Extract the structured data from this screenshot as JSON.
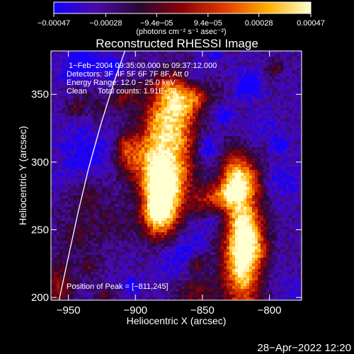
{
  "chart_data": {
    "type": "heatmap",
    "title": "Reconstructed RHESSI Image",
    "xlabel": "Heliocentric X (arcsec)",
    "ylabel": "Heliocentric Y (arcsec)",
    "xlim": [
      -963,
      -776
    ],
    "ylim": [
      198,
      382
    ],
    "x_ticks": [
      -950,
      -900,
      -850,
      -800
    ],
    "x_tick_labels": [
      "−950",
      "−900",
      "−850",
      "−800"
    ],
    "y_ticks": [
      200,
      250,
      300,
      350
    ],
    "y_tick_labels": [
      "200",
      "250",
      "300",
      "350"
    ],
    "colorbar": {
      "min": -0.00047,
      "max": 0.00047,
      "ticks": [
        -0.00047,
        -0.00028,
        -9.4e-05,
        9.4e-05,
        0.00028,
        0.00047
      ],
      "tick_labels": [
        "−0.00047",
        "−0.00028",
        "−9.4e−05",
        "9.4e−05",
        "0.00028",
        "0.00047"
      ],
      "unit_label": "(photons cm⁻² s⁻¹ asec⁻²)",
      "colormap_stops": [
        "#1500ff",
        "#4a0aa8",
        "#2a0830",
        "#8c0008",
        "#e23c00",
        "#ffb000",
        "#ffffd0"
      ]
    },
    "annotations": [
      "1−Feb−2004 09:35:00.000 to 09:37:12.000",
      "Detectors: 3F 4F 5F 6F 7F 8F, Att 0",
      "Energy Range: 12.0 − 25.0 keV",
      "Clean     Total counts: 1.91E+03"
    ],
    "peak_label": "Position of Peak = [−811,245]",
    "peak_position": [
      -811,
      245
    ],
    "limb_curve": [
      [
        -957,
        198
      ],
      [
        -950,
        230
      ],
      [
        -943,
        262
      ],
      [
        -935,
        295
      ],
      [
        -926,
        327
      ],
      [
        -916,
        359
      ],
      [
        -905,
        390
      ]
    ],
    "bright_sources": [
      {
        "x": -878,
        "y": 300,
        "sx": 13,
        "sy": 22,
        "amp": 1.15
      },
      {
        "x": -882,
        "y": 265,
        "sx": 9,
        "sy": 14,
        "amp": 0.8
      },
      {
        "x": -868,
        "y": 340,
        "sx": 10,
        "sy": 14,
        "amp": 0.75
      },
      {
        "x": -820,
        "y": 236,
        "sx": 10,
        "sy": 30,
        "amp": 0.95
      },
      {
        "x": -825,
        "y": 288,
        "sx": 8,
        "sy": 14,
        "amp": 0.6
      },
      {
        "x": -905,
        "y": 305,
        "sx": 7,
        "sy": 10,
        "amp": 0.35
      }
    ]
  },
  "timestamp": "28−Apr−2022 12:20"
}
